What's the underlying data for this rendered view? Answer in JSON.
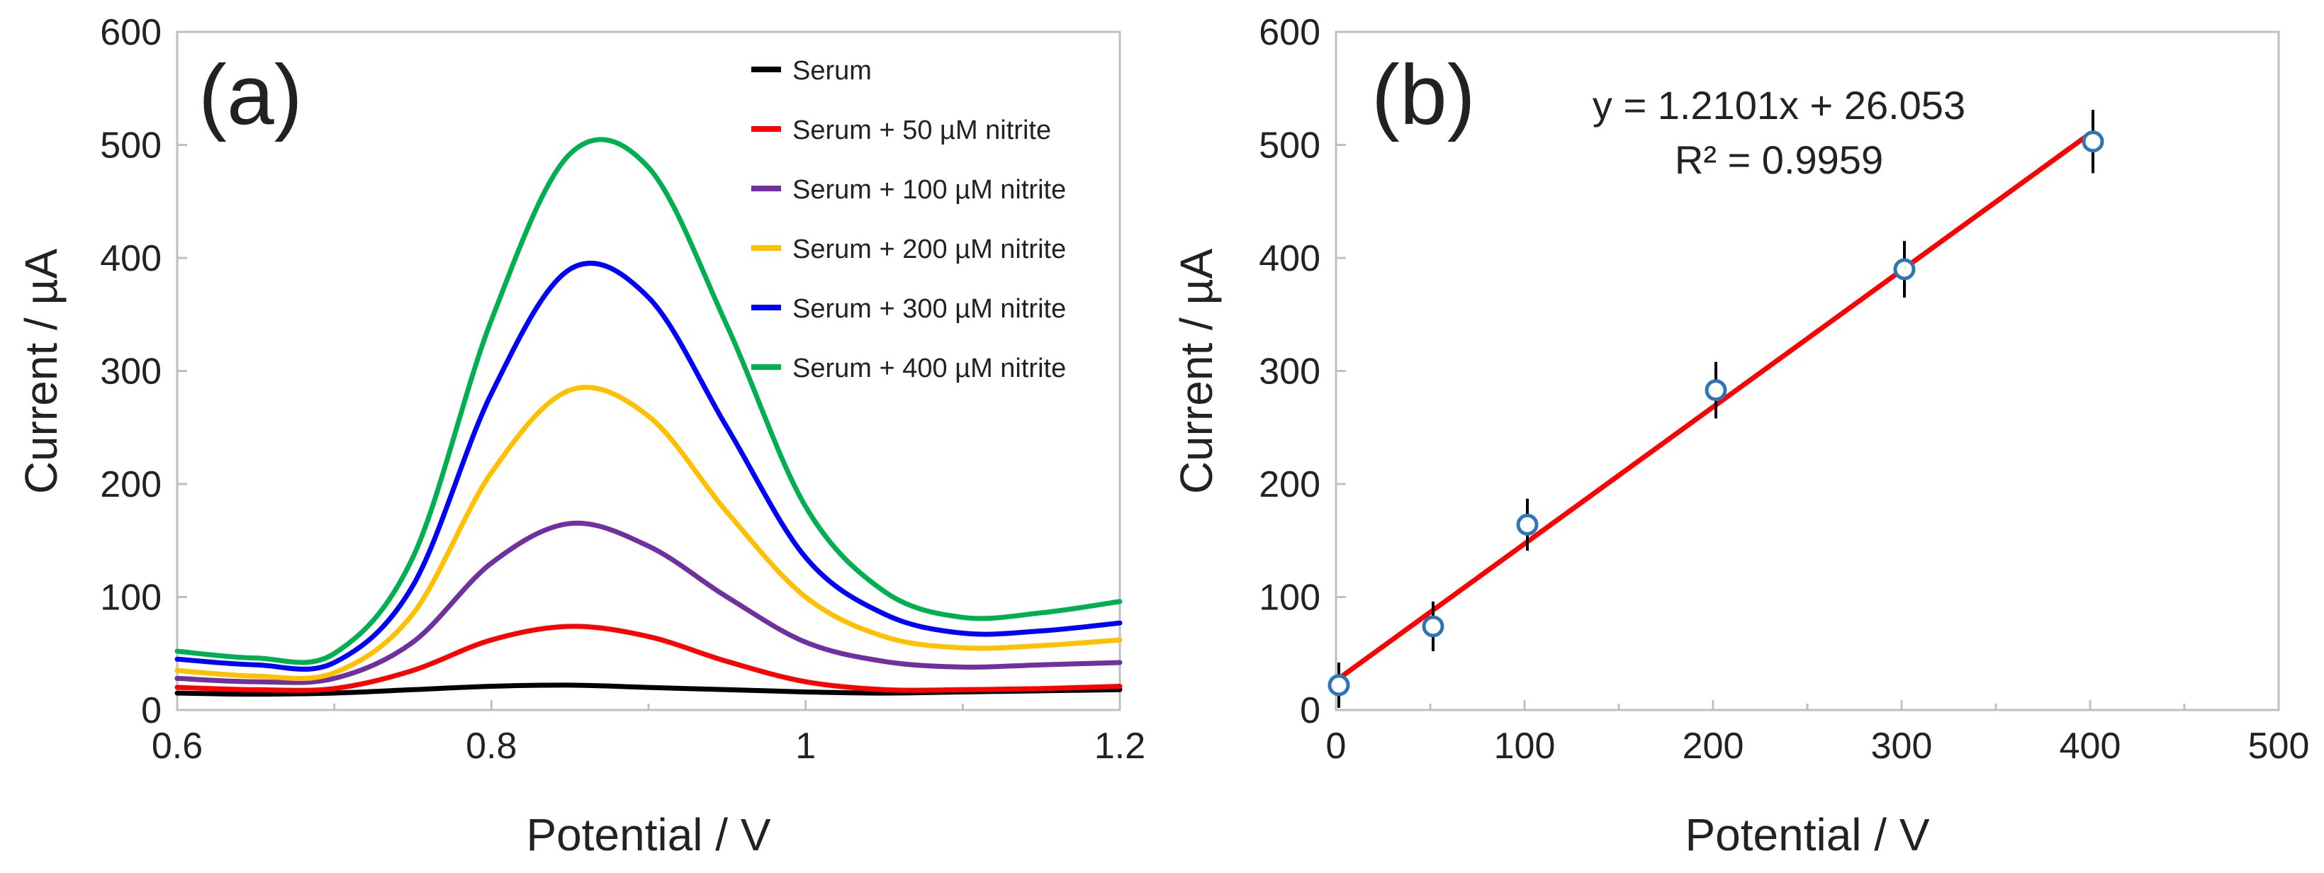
{
  "chart_data": [
    {
      "type": "line",
      "panel_label": "(a)",
      "xlabel": "Potential / V",
      "ylabel": "Current / µA",
      "xlim": [
        0.6,
        1.2
      ],
      "ylim": [
        0,
        600
      ],
      "xticks": [
        0.6,
        0.8,
        1.0,
        1.2
      ],
      "xtick_labels": [
        "0.6",
        "0.8",
        "1",
        "1.2"
      ],
      "yticks": [
        0,
        100,
        200,
        300,
        400,
        500,
        600
      ],
      "ytick_labels": [
        "0",
        "100",
        "200",
        "300",
        "400",
        "500",
        "600"
      ],
      "legend_position": "top-right",
      "grid": false,
      "series": [
        {
          "name": "Serum",
          "color": "#000000",
          "x": [
            0.6,
            0.65,
            0.7,
            0.75,
            0.8,
            0.85,
            0.9,
            0.95,
            1.0,
            1.05,
            1.1,
            1.15,
            1.2
          ],
          "y": [
            15,
            14,
            15,
            18,
            21,
            22,
            20,
            18,
            16,
            15,
            16,
            17,
            18
          ]
        },
        {
          "name": "Serum + 50 µM nitrite",
          "color": "#ff0000",
          "x": [
            0.6,
            0.65,
            0.7,
            0.75,
            0.8,
            0.85,
            0.9,
            0.95,
            1.0,
            1.05,
            1.1,
            1.15,
            1.2
          ],
          "y": [
            20,
            18,
            19,
            35,
            62,
            74,
            65,
            43,
            25,
            18,
            18,
            19,
            21
          ]
        },
        {
          "name": "Serum + 100 µM nitrite",
          "color": "#7030a0",
          "x": [
            0.6,
            0.65,
            0.7,
            0.75,
            0.8,
            0.85,
            0.9,
            0.95,
            1.0,
            1.05,
            1.1,
            1.15,
            1.2
          ],
          "y": [
            28,
            25,
            28,
            60,
            130,
            165,
            145,
            100,
            60,
            43,
            38,
            40,
            42
          ]
        },
        {
          "name": "Serum + 200 µM nitrite",
          "color": "#ffc000",
          "x": [
            0.6,
            0.65,
            0.7,
            0.75,
            0.8,
            0.85,
            0.9,
            0.95,
            1.0,
            1.05,
            1.1,
            1.15,
            1.2
          ],
          "y": [
            35,
            30,
            33,
            85,
            210,
            283,
            260,
            175,
            100,
            65,
            55,
            57,
            62
          ]
        },
        {
          "name": "Serum + 300 µM nitrite",
          "color": "#0000ff",
          "x": [
            0.6,
            0.65,
            0.7,
            0.75,
            0.8,
            0.85,
            0.9,
            0.95,
            1.0,
            1.05,
            1.1,
            1.15,
            1.2
          ],
          "y": [
            45,
            40,
            42,
            110,
            280,
            390,
            365,
            250,
            135,
            85,
            68,
            70,
            77
          ]
        },
        {
          "name": "Serum + 400 µM nitrite",
          "color": "#00b050",
          "x": [
            0.6,
            0.65,
            0.7,
            0.75,
            0.8,
            0.85,
            0.9,
            0.95,
            1.0,
            1.05,
            1.1,
            1.15,
            1.2
          ],
          "y": [
            52,
            46,
            50,
            135,
            345,
            492,
            480,
            340,
            180,
            105,
            82,
            86,
            96
          ]
        }
      ]
    },
    {
      "type": "scatter",
      "panel_label": "(b)",
      "xlabel": "Potential / V",
      "ylabel": "Current / µA",
      "xlim": [
        0,
        500
      ],
      "ylim": [
        0,
        600
      ],
      "xticks": [
        0,
        100,
        200,
        300,
        400,
        500
      ],
      "xtick_labels": [
        "0",
        "100",
        "200",
        "300",
        "400",
        "500"
      ],
      "yticks": [
        0,
        100,
        200,
        300,
        400,
        500,
        600
      ],
      "ytick_labels": [
        "0",
        "100",
        "200",
        "300",
        "400",
        "500",
        "600"
      ],
      "grid": false,
      "points": {
        "x": [
          0,
          50,
          100,
          200,
          300,
          400
        ],
        "y": [
          22,
          74,
          164,
          283,
          390,
          503
        ],
        "error": [
          20,
          22,
          23,
          25,
          25,
          28
        ],
        "color": "#2e75b6"
      },
      "fit": {
        "slope": 1.2101,
        "intercept": 26.053,
        "x_range": [
          0,
          400
        ],
        "color": "#ff0000",
        "equation": "y = 1.2101x + 26.053",
        "r_squared": "R² = 0.9959"
      }
    }
  ]
}
